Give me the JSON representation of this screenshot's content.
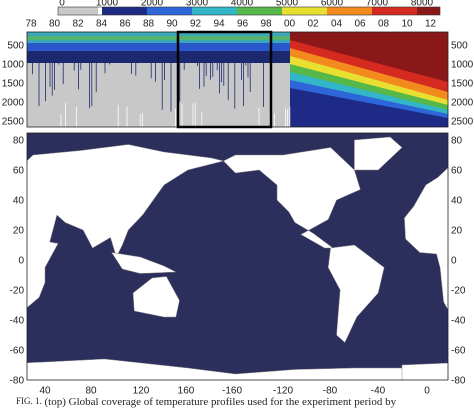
{
  "colorbar": {
    "ticks": [
      "0",
      "1000",
      "2000",
      "3000",
      "4000",
      "5000",
      "6000",
      "7000",
      "8000"
    ]
  },
  "top_panel": {
    "x_labels": [
      "78",
      "80",
      "82",
      "84",
      "86",
      "88",
      "90",
      "92",
      "94",
      "96",
      "98",
      "00",
      "02",
      "04",
      "06",
      "08",
      "10",
      "12"
    ],
    "y_labels_left": [
      "500",
      "1000",
      "1500",
      "2000",
      "2500"
    ],
    "y_labels_right": [
      "500",
      "1000",
      "1500",
      "2000",
      "2500"
    ]
  },
  "map": {
    "y_labels_left": [
      "80",
      "60",
      "40",
      "20",
      "0",
      "-20",
      "-40",
      "-60",
      "-80"
    ],
    "y_labels_right": [
      "80",
      "60",
      "40",
      "20",
      "0",
      "-20",
      "-40",
      "-60",
      "-80"
    ],
    "x_labels": [
      "40",
      "80",
      "120",
      "160",
      "-160",
      "-120",
      "-80",
      "-40",
      "0"
    ]
  },
  "caption": {
    "label": "FIG. 1.",
    "text": "(top) Global coverage of temperature profiles used for the experiment period by"
  }
}
